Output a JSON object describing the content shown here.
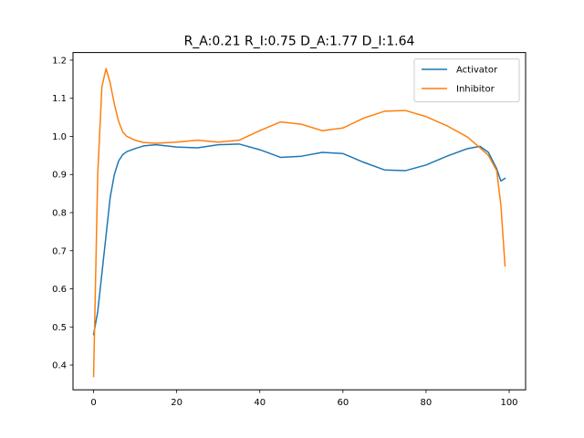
{
  "chart_data": {
    "type": "line",
    "title": "R_A:0.21 R_I:0.75 D_A:1.77 D_I:1.64",
    "xlabel": "",
    "ylabel": "",
    "xlim": [
      -4.95,
      103.95
    ],
    "ylim": [
      0.335,
      1.22
    ],
    "xticks": [
      0,
      20,
      40,
      60,
      80,
      100
    ],
    "xtick_labels": [
      "0",
      "20",
      "40",
      "60",
      "80",
      "100"
    ],
    "yticks": [
      0.4,
      0.5,
      0.6,
      0.7,
      0.8,
      0.9,
      1.0,
      1.1,
      1.2
    ],
    "ytick_labels": [
      "0.4",
      "0.5",
      "0.6",
      "0.7",
      "0.8",
      "0.9",
      "1.0",
      "1.1",
      "1.2"
    ],
    "grid": false,
    "legend_position": "upper right",
    "series": [
      {
        "name": "Activator",
        "color": "#1f77b4",
        "x": [
          0,
          1,
          2,
          3,
          4,
          5,
          6,
          7,
          8,
          10,
          12,
          15,
          20,
          25,
          30,
          35,
          40,
          45,
          50,
          55,
          60,
          65,
          70,
          75,
          80,
          85,
          90,
          93,
          95,
          97,
          98,
          99
        ],
        "y": [
          0.48,
          0.54,
          0.64,
          0.74,
          0.84,
          0.9,
          0.935,
          0.952,
          0.96,
          0.968,
          0.975,
          0.978,
          0.972,
          0.97,
          0.978,
          0.98,
          0.965,
          0.945,
          0.948,
          0.958,
          0.955,
          0.932,
          0.912,
          0.91,
          0.925,
          0.948,
          0.968,
          0.974,
          0.958,
          0.915,
          0.883,
          0.89
        ]
      },
      {
        "name": "Inhibitor",
        "color": "#ff7f0e",
        "x": [
          0,
          1,
          2,
          3,
          4,
          5,
          6,
          7,
          8,
          10,
          12,
          15,
          20,
          25,
          30,
          35,
          40,
          45,
          50,
          55,
          60,
          65,
          70,
          75,
          80,
          85,
          90,
          93,
          95,
          97,
          98,
          99
        ],
        "y": [
          0.37,
          0.9,
          1.13,
          1.178,
          1.14,
          1.085,
          1.04,
          1.012,
          1.0,
          0.99,
          0.984,
          0.982,
          0.985,
          0.99,
          0.985,
          0.99,
          1.015,
          1.038,
          1.032,
          1.015,
          1.022,
          1.048,
          1.066,
          1.068,
          1.052,
          1.028,
          0.998,
          0.97,
          0.95,
          0.91,
          0.82,
          0.66
        ]
      }
    ]
  }
}
